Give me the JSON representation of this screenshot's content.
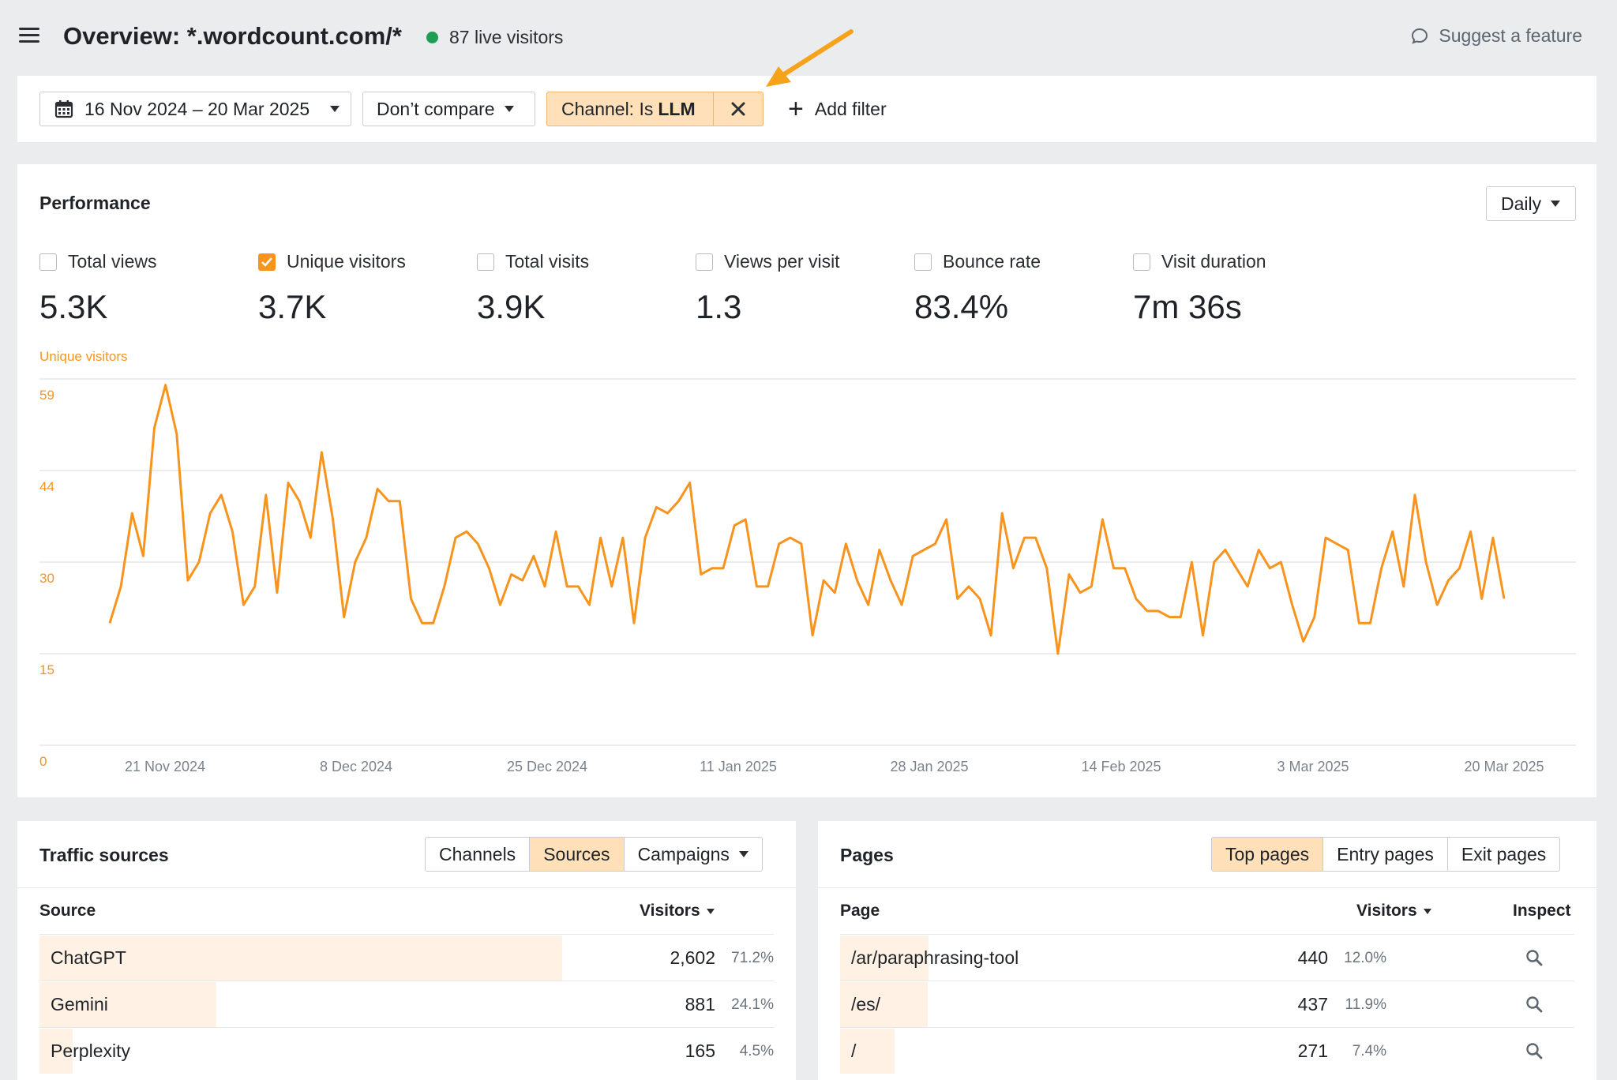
{
  "header": {
    "title": "Overview: *.wordcount.com/*",
    "live_visitors": "87 live visitors",
    "suggest": "Suggest a feature"
  },
  "filters": {
    "date_range": "16 Nov 2024 – 20 Mar 2025",
    "compare": "Don’t compare",
    "chip_prefix": "Channel: Is",
    "chip_value": "LLM",
    "add_filter": "Add filter"
  },
  "performance": {
    "title": "Performance",
    "interval": "Daily",
    "chart_label": "Unique visitors",
    "metrics": [
      {
        "label": "Total views",
        "value": "5.3K",
        "checked": false
      },
      {
        "label": "Unique visitors",
        "value": "3.7K",
        "checked": true
      },
      {
        "label": "Total visits",
        "value": "3.9K",
        "checked": false
      },
      {
        "label": "Views per visit",
        "value": "1.3",
        "checked": false
      },
      {
        "label": "Bounce rate",
        "value": "83.4%",
        "checked": false
      },
      {
        "label": "Visit duration",
        "value": "7m 36s",
        "checked": false
      }
    ]
  },
  "chart_data": {
    "type": "line",
    "title": "",
    "ylabel": "Unique visitors",
    "xlabel": "",
    "ylim": [
      0,
      60
    ],
    "y_ticks": [
      "0",
      "15",
      "30",
      "44",
      "59"
    ],
    "x_ticks": [
      "21 Nov 2024",
      "8 Dec 2024",
      "25 Dec 2024",
      "11 Jan 2025",
      "28 Jan 2025",
      "14 Feb 2025",
      "3 Mar 2025",
      "20 Mar 2025"
    ],
    "grid": true,
    "color": "#f7941d",
    "series": [
      {
        "name": "Unique visitors",
        "x_start": "16 Nov 2024",
        "x_end": "20 Mar 2025",
        "values": [
          20,
          26,
          38,
          31,
          52,
          59,
          51,
          27,
          30,
          38,
          41,
          35,
          23,
          26,
          41,
          25,
          43,
          40,
          34,
          48,
          37,
          21,
          30,
          34,
          42,
          40,
          40,
          24,
          20,
          20,
          26,
          34,
          35,
          33,
          29,
          23,
          28,
          27,
          31,
          26,
          35,
          26,
          26,
          23,
          34,
          26,
          34,
          20,
          34,
          39,
          38,
          40,
          43,
          28,
          29,
          29,
          36,
          37,
          26,
          26,
          33,
          34,
          33,
          18,
          27,
          25,
          33,
          27,
          23,
          32,
          27,
          23,
          31,
          32,
          33,
          37,
          24,
          26,
          24,
          18,
          38,
          29,
          34,
          34,
          29,
          15,
          28,
          25,
          26,
          37,
          29,
          29,
          24,
          22,
          22,
          21,
          21,
          30,
          18,
          30,
          32,
          29,
          26,
          32,
          29,
          30,
          23,
          17,
          21,
          34,
          33,
          32,
          20,
          20,
          29,
          35,
          26,
          41,
          30,
          23,
          27,
          29,
          35,
          24,
          34,
          24
        ]
      }
    ]
  },
  "traffic": {
    "title": "Traffic sources",
    "tabs": [
      "Channels",
      "Sources",
      "Campaigns"
    ],
    "active_tab": 1,
    "col_source": "Source",
    "col_visitors": "Visitors",
    "rows": [
      {
        "name": "ChatGPT",
        "value": "2,602",
        "pct": "71.2%",
        "share": 0.712
      },
      {
        "name": "Gemini",
        "value": "881",
        "pct": "24.1%",
        "share": 0.241
      },
      {
        "name": "Perplexity",
        "value": "165",
        "pct": "4.5%",
        "share": 0.045
      }
    ]
  },
  "pages": {
    "title": "Pages",
    "tabs": [
      "Top pages",
      "Entry pages",
      "Exit pages"
    ],
    "active_tab": 0,
    "col_page": "Page",
    "col_visitors": "Visitors",
    "col_inspect": "Inspect",
    "rows": [
      {
        "name": "/ar/paraphrasing-tool",
        "value": "440",
        "pct": "12.0%",
        "share": 0.12
      },
      {
        "name": "/es/",
        "value": "437",
        "pct": "11.9%",
        "share": 0.119
      },
      {
        "name": "/",
        "value": "271",
        "pct": "7.4%",
        "share": 0.074
      }
    ]
  }
}
